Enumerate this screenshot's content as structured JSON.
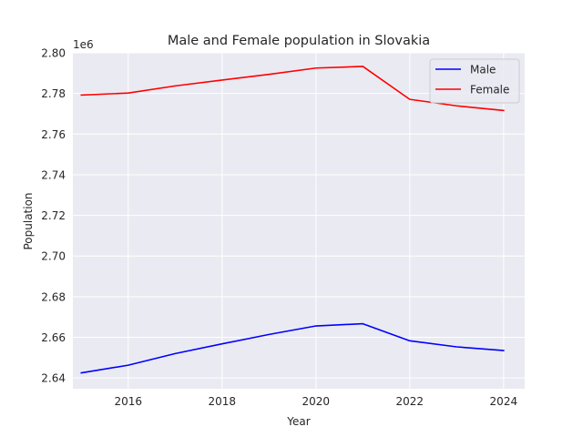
{
  "chart_data": {
    "type": "line",
    "title": "Male and Female population in Slovakia",
    "xlabel": "Year",
    "ylabel": "Population",
    "y_offset_label": "1e6",
    "xlim": [
      2014.82,
      2024.45
    ],
    "ylim": [
      2.6347,
      2.8
    ],
    "x_ticks": [
      2016,
      2018,
      2020,
      2022,
      2024
    ],
    "y_ticks": [
      2.64,
      2.66,
      2.68,
      2.7,
      2.72,
      2.74,
      2.76,
      2.78,
      2.8
    ],
    "y_tick_labels": [
      "2.64",
      "2.66",
      "2.68",
      "2.70",
      "2.72",
      "2.74",
      "2.76",
      "2.78",
      "2.80"
    ],
    "grid": true,
    "legend_position": "top-right",
    "x": [
      2015,
      2016,
      2017,
      2018,
      2019,
      2020,
      2021,
      2022,
      2023,
      2024
    ],
    "series": [
      {
        "name": "Male",
        "color": "#0000ff",
        "values": [
          2.6425,
          2.6463,
          2.652,
          2.6568,
          2.6614,
          2.6656,
          2.6667,
          2.6583,
          2.6553,
          2.6535
        ]
      },
      {
        "name": "Female",
        "color": "#ff0000",
        "values": [
          2.7792,
          2.7802,
          2.7837,
          2.7866,
          2.7894,
          2.7925,
          2.7933,
          2.7771,
          2.7739,
          2.7716
        ]
      }
    ]
  }
}
